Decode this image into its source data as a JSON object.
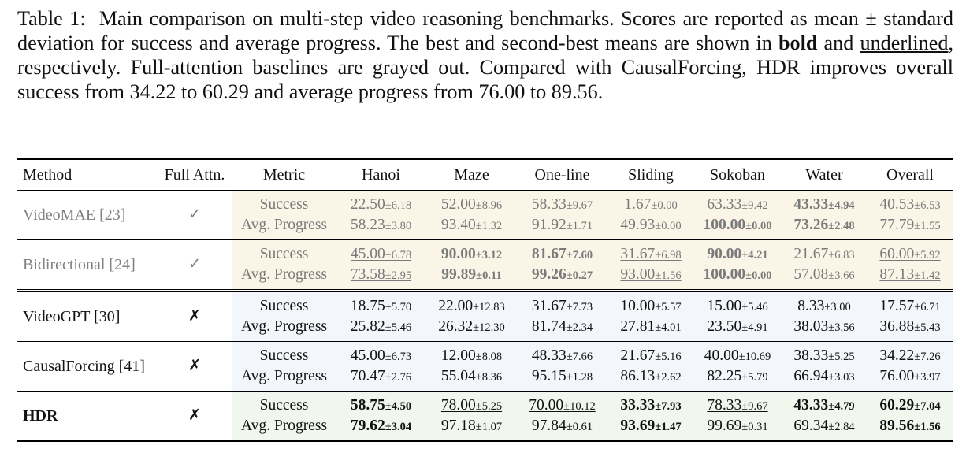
{
  "caption": {
    "label": "Table 1:",
    "text_1": "Main comparison on multi-step video reasoning benchmarks. Scores are reported as mean ± standard deviation for success and average progress. The best and second-best means are shown in",
    "bold_word": "bold",
    "text_2": "and",
    "underlined_word": "underlined",
    "text_3": ", respectively. Full-attention baselines are grayed out. Compared with CausalForcing, HDR improves overall success from 34.22 to 60.29 and average progress from 76.00 to 89.56."
  },
  "table": {
    "headers": [
      "Method",
      "Full Attn.",
      "Metric",
      "Hanoi",
      "Maze",
      "One-line",
      "Sliding",
      "Sokoban",
      "Water",
      "Overall"
    ],
    "metrics": [
      "Success",
      "Avg. Progress"
    ],
    "rows": [
      {
        "method": "VideoMAE [23]",
        "full_attn": "✓",
        "grayed": true,
        "background": "#fbf5e8",
        "success": [
          {
            "mean": "22.50",
            "std": "±6.18",
            "bold": false,
            "underline": false
          },
          {
            "mean": "52.00",
            "std": "±8.96",
            "bold": false,
            "underline": false
          },
          {
            "mean": "58.33",
            "std": "±9.67",
            "bold": false,
            "underline": false
          },
          {
            "mean": "1.67",
            "std": "±0.00",
            "bold": false,
            "underline": false
          },
          {
            "mean": "63.33",
            "std": "±9.42",
            "bold": false,
            "underline": false
          },
          {
            "mean": "43.33",
            "std": "±4.94",
            "bold": true,
            "underline": false
          },
          {
            "mean": "40.53",
            "std": "±6.53",
            "bold": false,
            "underline": false
          }
        ],
        "progress": [
          {
            "mean": "58.23",
            "std": "±3.80",
            "bold": false,
            "underline": false
          },
          {
            "mean": "93.40",
            "std": "±1.32",
            "bold": false,
            "underline": false
          },
          {
            "mean": "91.92",
            "std": "±1.71",
            "bold": false,
            "underline": false
          },
          {
            "mean": "49.93",
            "std": "±0.00",
            "bold": false,
            "underline": false
          },
          {
            "mean": "100.00",
            "std": "±0.00",
            "bold": true,
            "underline": false
          },
          {
            "mean": "73.26",
            "std": "±2.48",
            "bold": true,
            "underline": false
          },
          {
            "mean": "77.79",
            "std": "±1.55",
            "bold": false,
            "underline": false
          }
        ]
      },
      {
        "method": "Bidirectional [24]",
        "full_attn": "✓",
        "grayed": true,
        "background": "#fbf5e8",
        "success": [
          {
            "mean": "45.00",
            "std": "±6.78",
            "bold": false,
            "underline": true
          },
          {
            "mean": "90.00",
            "std": "±3.12",
            "bold": true,
            "underline": false
          },
          {
            "mean": "81.67",
            "std": "±7.60",
            "bold": true,
            "underline": false
          },
          {
            "mean": "31.67",
            "std": "±6.98",
            "bold": false,
            "underline": true
          },
          {
            "mean": "90.00",
            "std": "±4.21",
            "bold": true,
            "underline": false
          },
          {
            "mean": "21.67",
            "std": "±6.83",
            "bold": false,
            "underline": false
          },
          {
            "mean": "60.00",
            "std": "±5.92",
            "bold": false,
            "underline": true
          }
        ],
        "progress": [
          {
            "mean": "73.58",
            "std": "±2.95",
            "bold": false,
            "underline": true
          },
          {
            "mean": "99.89",
            "std": "±0.11",
            "bold": true,
            "underline": false
          },
          {
            "mean": "99.26",
            "std": "±0.27",
            "bold": true,
            "underline": false
          },
          {
            "mean": "93.00",
            "std": "±1.56",
            "bold": false,
            "underline": true
          },
          {
            "mean": "100.00",
            "std": "±0.00",
            "bold": true,
            "underline": false
          },
          {
            "mean": "57.08",
            "std": "±3.66",
            "bold": false,
            "underline": false
          },
          {
            "mean": "87.13",
            "std": "±1.42",
            "bold": false,
            "underline": true
          }
        ]
      },
      {
        "method": "VideoGPT [30]",
        "full_attn": "✗",
        "grayed": false,
        "background": "#f3f6fb",
        "success": [
          {
            "mean": "18.75",
            "std": "±5.70",
            "bold": false,
            "underline": false
          },
          {
            "mean": "22.00",
            "std": "±12.83",
            "bold": false,
            "underline": false
          },
          {
            "mean": "31.67",
            "std": "±7.73",
            "bold": false,
            "underline": false
          },
          {
            "mean": "10.00",
            "std": "±5.57",
            "bold": false,
            "underline": false
          },
          {
            "mean": "15.00",
            "std": "±5.46",
            "bold": false,
            "underline": false
          },
          {
            "mean": "8.33",
            "std": "±3.00",
            "bold": false,
            "underline": false
          },
          {
            "mean": "17.57",
            "std": "±6.71",
            "bold": false,
            "underline": false
          }
        ],
        "progress": [
          {
            "mean": "25.82",
            "std": "±5.46",
            "bold": false,
            "underline": false
          },
          {
            "mean": "26.32",
            "std": "±12.30",
            "bold": false,
            "underline": false
          },
          {
            "mean": "81.74",
            "std": "±2.34",
            "bold": false,
            "underline": false
          },
          {
            "mean": "27.81",
            "std": "±4.01",
            "bold": false,
            "underline": false
          },
          {
            "mean": "23.50",
            "std": "±4.91",
            "bold": false,
            "underline": false
          },
          {
            "mean": "38.03",
            "std": "±3.56",
            "bold": false,
            "underline": false
          },
          {
            "mean": "36.88",
            "std": "±5.43",
            "bold": false,
            "underline": false
          }
        ]
      },
      {
        "method": "CausalForcing [41]",
        "full_attn": "✗",
        "grayed": false,
        "background": "#f3f6fb",
        "success": [
          {
            "mean": "45.00",
            "std": "±6.73",
            "bold": false,
            "underline": true
          },
          {
            "mean": "12.00",
            "std": "±8.08",
            "bold": false,
            "underline": false
          },
          {
            "mean": "48.33",
            "std": "±7.66",
            "bold": false,
            "underline": false
          },
          {
            "mean": "21.67",
            "std": "±5.16",
            "bold": false,
            "underline": false
          },
          {
            "mean": "40.00",
            "std": "±10.69",
            "bold": false,
            "underline": false
          },
          {
            "mean": "38.33",
            "std": "±5.25",
            "bold": false,
            "underline": true
          },
          {
            "mean": "34.22",
            "std": "±7.26",
            "bold": false,
            "underline": false
          }
        ],
        "progress": [
          {
            "mean": "70.47",
            "std": "±2.76",
            "bold": false,
            "underline": false
          },
          {
            "mean": "55.04",
            "std": "±8.36",
            "bold": false,
            "underline": false
          },
          {
            "mean": "95.15",
            "std": "±1.28",
            "bold": false,
            "underline": false
          },
          {
            "mean": "86.13",
            "std": "±2.62",
            "bold": false,
            "underline": false
          },
          {
            "mean": "82.25",
            "std": "±5.79",
            "bold": false,
            "underline": false
          },
          {
            "mean": "66.94",
            "std": "±3.03",
            "bold": false,
            "underline": false
          },
          {
            "mean": "76.00",
            "std": "±3.97",
            "bold": false,
            "underline": false
          }
        ]
      },
      {
        "method": "HDR",
        "full_attn": "✗",
        "grayed": false,
        "method_bold": true,
        "background": "#f2f7ee",
        "success": [
          {
            "mean": "58.75",
            "std": "±4.50",
            "bold": true,
            "underline": false
          },
          {
            "mean": "78.00",
            "std": "±5.25",
            "bold": false,
            "underline": true
          },
          {
            "mean": "70.00",
            "std": "±10.12",
            "bold": false,
            "underline": true
          },
          {
            "mean": "33.33",
            "std": "±7.93",
            "bold": true,
            "underline": false
          },
          {
            "mean": "78.33",
            "std": "±9.67",
            "bold": false,
            "underline": true
          },
          {
            "mean": "43.33",
            "std": "±4.79",
            "bold": true,
            "underline": false
          },
          {
            "mean": "60.29",
            "std": "±7.04",
            "bold": true,
            "underline": false
          }
        ],
        "progress": [
          {
            "mean": "79.62",
            "std": "±3.04",
            "bold": true,
            "underline": false
          },
          {
            "mean": "97.18",
            "std": "±1.07",
            "bold": false,
            "underline": true
          },
          {
            "mean": "97.84",
            "std": "±0.61",
            "bold": false,
            "underline": true
          },
          {
            "mean": "93.69",
            "std": "±1.47",
            "bold": true,
            "underline": false
          },
          {
            "mean": "99.69",
            "std": "±0.31",
            "bold": false,
            "underline": true
          },
          {
            "mean": "69.34",
            "std": "±2.84",
            "bold": false,
            "underline": true
          },
          {
            "mean": "89.56",
            "std": "±1.56",
            "bold": true,
            "underline": false
          }
        ]
      }
    ]
  }
}
